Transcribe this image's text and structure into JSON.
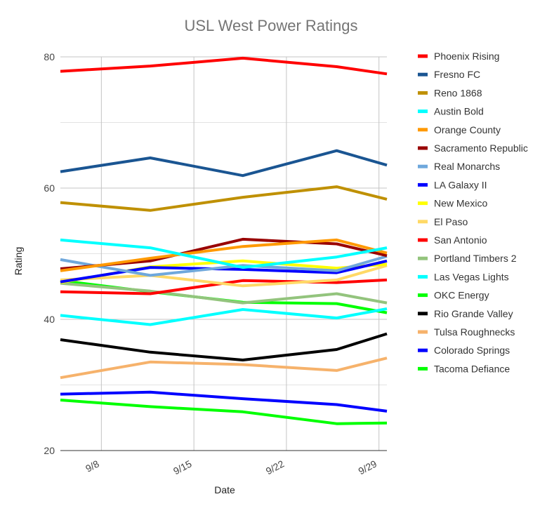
{
  "chart_data": {
    "type": "line",
    "title": "USL West Power Ratings",
    "xlabel": "Date",
    "ylabel": "Rating",
    "x": [
      9.0,
      14.0,
      19.0,
      24.0,
      29.0
    ],
    "xlim": [
      4.9,
      29.6
    ],
    "x_ticks": [
      {
        "value": 8,
        "label": "9/8"
      },
      {
        "value": 15,
        "label": "9/15"
      },
      {
        "value": 22,
        "label": "9/22"
      },
      {
        "value": 29,
        "label": "9/29"
      }
    ],
    "ylim": [
      20,
      80
    ],
    "y_ticks": [
      20,
      40,
      60,
      80
    ],
    "grid": true,
    "legend_position": "right",
    "series": [
      {
        "name": "Phoenix Rising",
        "color": "#ff0000",
        "x": [
          4.9,
          11.7,
          18.7,
          25.8,
          29.6
        ],
        "values": [
          77.8,
          78.6,
          79.8,
          78.5,
          77.4
        ]
      },
      {
        "name": "Fresno FC",
        "color": "#1a5592",
        "x": [
          4.9,
          11.7,
          18.7,
          25.8,
          29.6
        ],
        "values": [
          62.5,
          64.6,
          61.9,
          65.7,
          63.5
        ]
      },
      {
        "name": "Reno 1868",
        "color": "#bf9000",
        "x": [
          4.9,
          11.7,
          18.7,
          25.8,
          29.6
        ],
        "values": [
          57.8,
          56.6,
          58.6,
          60.2,
          58.3
        ]
      },
      {
        "name": "Austin Bold",
        "color": "#00ffff",
        "x": [
          4.9,
          11.7,
          18.7,
          25.8,
          29.6
        ],
        "values": [
          52.1,
          50.9,
          47.9,
          49.5,
          50.9
        ]
      },
      {
        "name": "Orange County",
        "color": "#ff9900",
        "x": [
          4.9,
          11.7,
          18.7,
          25.8,
          29.6
        ],
        "values": [
          47.4,
          49.3,
          51.1,
          52.1,
          50.1
        ]
      },
      {
        "name": "Sacramento Republic",
        "color": "#990000",
        "x": [
          4.9,
          11.7,
          18.7,
          25.8,
          29.6
        ],
        "values": [
          47.7,
          48.9,
          52.2,
          51.5,
          49.7
        ]
      },
      {
        "name": "Real Monarchs",
        "color": "#6fa8dc",
        "x": [
          4.9,
          11.7,
          18.7,
          25.8,
          29.6
        ],
        "values": [
          49.1,
          46.7,
          48.2,
          47.4,
          49.6
        ]
      },
      {
        "name": "LA Galaxy II",
        "color": "#0000ff",
        "x": [
          4.9,
          11.7,
          18.7,
          25.8,
          29.6
        ],
        "values": [
          45.7,
          47.9,
          47.6,
          47.1,
          48.9
        ]
      },
      {
        "name": "New Mexico",
        "color": "#ffff00",
        "x": [
          4.9,
          11.7,
          18.7,
          25.8,
          29.6
        ],
        "values": [
          45.6,
          48.0,
          48.9,
          47.8,
          48.4
        ]
      },
      {
        "name": "El Paso",
        "color": "#ffd966",
        "x": [
          4.9,
          11.7,
          18.7,
          25.8,
          29.6
        ],
        "values": [
          46.0,
          46.7,
          45.1,
          46.0,
          48.2
        ]
      },
      {
        "name": "San Antonio",
        "color": "#ff0000",
        "x": [
          4.9,
          11.7,
          18.7,
          25.8,
          29.6
        ],
        "values": [
          44.2,
          43.9,
          45.9,
          45.6,
          46.0
        ]
      },
      {
        "name": "Portland Timbers 2",
        "color": "#93c47d",
        "x": [
          4.9,
          11.7,
          18.7,
          25.8,
          29.6
        ],
        "values": [
          45.5,
          44.3,
          42.5,
          43.9,
          42.5
        ]
      },
      {
        "name": "Las Vegas Lights",
        "color": "#00ffff",
        "x": [
          4.9,
          11.7,
          18.7,
          25.8,
          29.6
        ],
        "values": [
          40.6,
          39.2,
          41.5,
          40.2,
          41.6
        ]
      },
      {
        "name": "OKC Energy",
        "color": "#00ff00",
        "x": [
          4.9,
          11.7,
          18.7,
          25.8,
          29.6
        ],
        "values": [
          45.9,
          44.2,
          42.6,
          42.4,
          41.0
        ]
      },
      {
        "name": "Rio Grande Valley",
        "color": "#000000",
        "x": [
          4.9,
          11.7,
          18.7,
          25.8,
          29.6
        ],
        "values": [
          36.9,
          35.0,
          33.8,
          35.4,
          37.8
        ]
      },
      {
        "name": "Tulsa Roughnecks",
        "color": "#f6b26b",
        "x": [
          4.9,
          11.7,
          18.7,
          25.8,
          29.6
        ],
        "values": [
          31.1,
          33.5,
          33.1,
          32.2,
          34.1
        ]
      },
      {
        "name": "Colorado Springs",
        "color": "#0000ff",
        "x": [
          4.9,
          11.7,
          18.7,
          25.8,
          29.6
        ],
        "values": [
          28.6,
          28.9,
          27.9,
          27.0,
          26.0
        ]
      },
      {
        "name": "Tacoma Defiance",
        "color": "#00ff00",
        "x": [
          4.9,
          11.7,
          18.7,
          25.8,
          29.6
        ],
        "values": [
          27.7,
          26.7,
          25.9,
          24.1,
          24.2
        ]
      }
    ]
  }
}
